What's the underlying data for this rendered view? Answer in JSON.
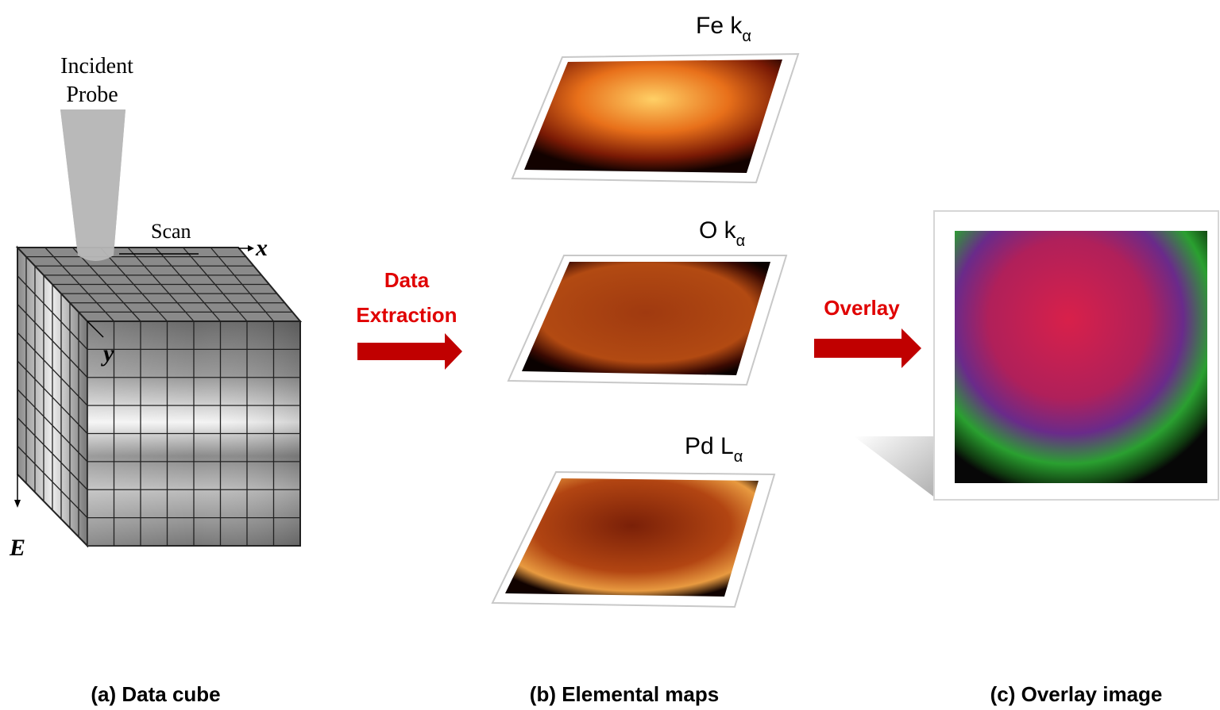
{
  "cube": {
    "probe": [
      "Incident",
      "Probe"
    ],
    "scan": "Scan",
    "x_axis": "x",
    "y_axis": "y",
    "e_axis": "E"
  },
  "steps": {
    "extraction": [
      "Data",
      "Extraction"
    ],
    "overlay": "Overlay"
  },
  "maps": [
    {
      "label": "Fe k",
      "sub": "α"
    },
    {
      "label": "O k",
      "sub": "α"
    },
    {
      "label": "Pd L",
      "sub": "α"
    }
  ],
  "captions": [
    "(a) Data cube",
    "(b) Elemental maps",
    "(c) Overlay image"
  ]
}
